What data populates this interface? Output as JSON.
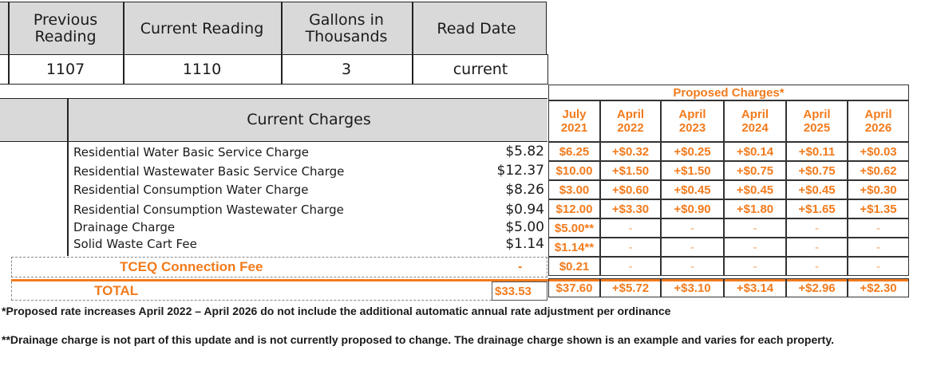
{
  "readings": {
    "headers": [
      "Previous Reading",
      "Current Reading",
      "Gallons in Thousands",
      "Read Date"
    ],
    "values": [
      "1107",
      "1110",
      "3",
      "current"
    ]
  },
  "current_charges": {
    "header": "Current Charges",
    "items": [
      {
        "label": "Residential Water Basic Service Charge",
        "amount": "$5.82"
      },
      {
        "label": "Residential Wastewater Basic Service Charge",
        "amount": "$12.37"
      },
      {
        "label": "Residential Consumption Water Charge",
        "amount": "$8.26"
      },
      {
        "label": "Residential Consumption Wastewater Charge",
        "amount": "$0.94"
      },
      {
        "label": "Drainage Charge",
        "amount": "$5.00"
      },
      {
        "label": "Solid Waste Cart Fee",
        "amount": "$1.14"
      }
    ],
    "tceq_label": "TCEQ Connection Fee",
    "tceq_amount": "-",
    "total_label": "TOTAL",
    "total_amount": "$33.53"
  },
  "proposed": {
    "title": "Proposed Charges*",
    "columns": [
      "July 2021",
      "April 2022",
      "April 2023",
      "April 2024",
      "April 2025",
      "April 2026"
    ],
    "rows": [
      [
        "$6.25",
        "+$0.32",
        "+$0.25",
        "+$0.14",
        "+$0.11",
        "+$0.03"
      ],
      [
        "$10.00",
        "+$1.50",
        "+$1.50",
        "+$0.75",
        "+$0.75",
        "+$0.62"
      ],
      [
        "$3.00",
        "+$0.60",
        "+$0.45",
        "+$0.45",
        "+$0.45",
        "+$0.30"
      ],
      [
        "$12.00",
        "+$3.30",
        "+$0.90",
        "+$1.80",
        "+$1.65",
        "+$1.35"
      ],
      [
        "$5.00**",
        "-",
        "-",
        "-",
        "-",
        "-"
      ],
      [
        "$1.14**",
        "-",
        "-",
        "-",
        "-",
        "-"
      ],
      [
        "$0.21",
        "-",
        "-",
        "-",
        "-",
        "-"
      ],
      [
        "$37.60",
        "+$5.72",
        "+$3.10",
        "+$3.14",
        "+$2.96",
        "+$2.30"
      ]
    ]
  },
  "notes": [
    "*Proposed rate increases April 2022 – April 2026 do not include the additional automatic annual rate adjustment per ordinance",
    "**Drainage charge is not part of this update and is not currently proposed to change.  The drainage charge shown is an example and varies for each property."
  ],
  "colors": {
    "accent": "#f27b1d",
    "header_fill": "#d9d9d9"
  }
}
